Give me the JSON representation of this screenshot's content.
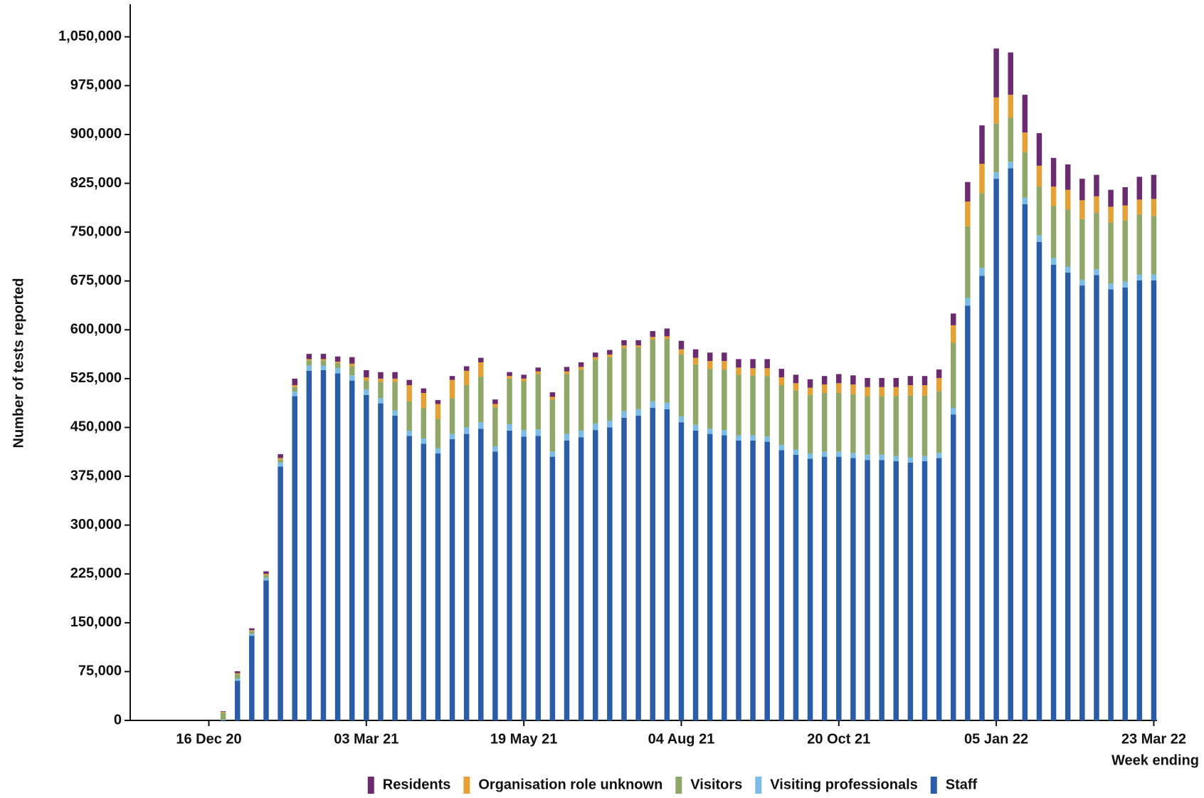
{
  "chart_data": {
    "type": "bar",
    "stacked": true,
    "y_label": "Number of tests reported",
    "x_label": "Week ending",
    "categories": [
      "16 Dec 20",
      null,
      null,
      null,
      null,
      null,
      null,
      null,
      null,
      null,
      null,
      "03 Mar 21",
      null,
      null,
      null,
      null,
      null,
      null,
      null,
      null,
      null,
      null,
      "19 May 21",
      null,
      null,
      null,
      null,
      null,
      null,
      null,
      null,
      null,
      null,
      "04 Aug 21",
      null,
      null,
      null,
      null,
      null,
      null,
      null,
      null,
      null,
      null,
      "20 Oct 21",
      null,
      null,
      null,
      null,
      null,
      null,
      null,
      null,
      null,
      null,
      "05 Jan 22",
      null,
      null,
      null,
      null,
      null,
      null,
      null,
      null,
      null,
      null,
      "23 Mar 22"
    ],
    "series": [
      {
        "name": "Staff",
        "color": "#2a5ca8",
        "values": [
          0,
          0,
          61000,
          130000,
          215000,
          390000,
          498000,
          537000,
          538000,
          533000,
          522000,
          500000,
          487000,
          468000,
          437000,
          425000,
          410000,
          432000,
          440000,
          448000,
          413000,
          445000,
          436000,
          437000,
          405000,
          430000,
          435000,
          446000,
          450000,
          465000,
          468000,
          480000,
          478000,
          458000,
          445000,
          440000,
          438000,
          430000,
          430000,
          428000,
          415000,
          408000,
          402000,
          405000,
          405000,
          403000,
          400000,
          400000,
          398000,
          396000,
          398000,
          403000,
          470000,
          637000,
          683000,
          832000,
          848000,
          793000,
          735000,
          700000,
          688000,
          668000,
          684000,
          662000,
          665000,
          676000,
          676000
        ]
      },
      {
        "name": "Visiting professionals",
        "color": "#7cbde8",
        "values": [
          0,
          1000,
          3000,
          3000,
          4000,
          6000,
          7000,
          8000,
          7000,
          8000,
          8000,
          8000,
          8000,
          8000,
          8000,
          8000,
          8000,
          8000,
          10000,
          10000,
          8000,
          10000,
          10000,
          10000,
          8000,
          10000,
          10000,
          10000,
          10000,
          10000,
          10000,
          10000,
          10000,
          9000,
          9000,
          8000,
          8000,
          8000,
          8000,
          8000,
          8000,
          8000,
          8000,
          8000,
          8000,
          8000,
          8000,
          8000,
          8000,
          8000,
          8000,
          8000,
          10000,
          12000,
          12000,
          10000,
          10000,
          10000,
          10000,
          10000,
          9000,
          9000,
          9000,
          9000,
          9000,
          9000,
          9000
        ]
      },
      {
        "name": "Visitors",
        "color": "#8fa86a",
        "values": [
          0,
          11000,
          7000,
          4000,
          4000,
          5000,
          7000,
          8000,
          8000,
          8000,
          14000,
          14000,
          25000,
          44000,
          45000,
          47000,
          45000,
          55000,
          65000,
          70000,
          60000,
          70000,
          75000,
          85000,
          80000,
          92000,
          94000,
          98000,
          98000,
          97000,
          95000,
          95000,
          98000,
          95000,
          93000,
          92000,
          93000,
          93000,
          92000,
          93000,
          92000,
          91000,
          90000,
          90000,
          90000,
          90000,
          90000,
          90000,
          92000,
          95000,
          93000,
          95000,
          100000,
          110000,
          115000,
          75000,
          68000,
          70000,
          75000,
          80000,
          88000,
          93000,
          87000,
          94000,
          94000,
          92000,
          90000
        ]
      },
      {
        "name": "Organisation role unknown",
        "color": "#e5a136",
        "values": [
          0,
          1000,
          1500,
          1500,
          2000,
          2000,
          3000,
          2000,
          2000,
          2000,
          4000,
          5000,
          5000,
          5000,
          25000,
          23000,
          23000,
          28000,
          22000,
          22000,
          5000,
          4000,
          4000,
          4000,
          4000,
          4000,
          4000,
          4000,
          4000,
          4000,
          3000,
          4000,
          4000,
          8000,
          10000,
          12000,
          13000,
          11000,
          11000,
          12000,
          12000,
          11000,
          11000,
          13000,
          15000,
          15000,
          14000,
          14000,
          14000,
          16000,
          16000,
          20000,
          27000,
          38000,
          45000,
          40000,
          35000,
          30000,
          32000,
          30000,
          30000,
          29000,
          25000,
          24000,
          23000,
          23000,
          26000
        ]
      },
      {
        "name": "Residents",
        "color": "#6a2b6f",
        "values": [
          0,
          1000,
          3000,
          3000,
          4000,
          6000,
          10000,
          8000,
          8000,
          8000,
          10000,
          11000,
          10000,
          10000,
          8000,
          7000,
          6000,
          6000,
          7000,
          7000,
          7000,
          6000,
          6000,
          6000,
          7000,
          7000,
          7000,
          7000,
          7000,
          8000,
          8000,
          9000,
          12000,
          13000,
          13000,
          13000,
          13000,
          13000,
          14000,
          14000,
          13000,
          13000,
          13000,
          13000,
          14000,
          14000,
          14000,
          14000,
          14000,
          14000,
          14000,
          13000,
          18000,
          30000,
          59000,
          75000,
          65000,
          58000,
          50000,
          44000,
          39000,
          33000,
          33000,
          26000,
          28000,
          35000,
          37000
        ]
      }
    ],
    "ylim": [
      0,
      1100000
    ],
    "yticks": [
      0,
      {
        "value": 75000,
        "label": "75,000"
      },
      {
        "value": 150000,
        "label": "150,000"
      },
      {
        "value": 225000,
        "label": "225,000"
      },
      {
        "value": 300000,
        "label": "300,000"
      },
      {
        "value": 375000,
        "label": "375,000"
      },
      {
        "value": 450000,
        "label": "450,000"
      },
      {
        "value": 525000,
        "label": "525,000"
      },
      {
        "value": 600000,
        "label": "600,000"
      },
      {
        "value": 675000,
        "label": "675,000"
      },
      {
        "value": 750000,
        "label": "750,000"
      },
      {
        "value": 825000,
        "label": "825,000"
      },
      {
        "value": 900000,
        "label": "900,000"
      },
      {
        "value": 975000,
        "label": "975,000"
      },
      {
        "value": 1050000,
        "label": "1,050,000"
      }
    ],
    "grid": false,
    "legend": "bottom"
  }
}
